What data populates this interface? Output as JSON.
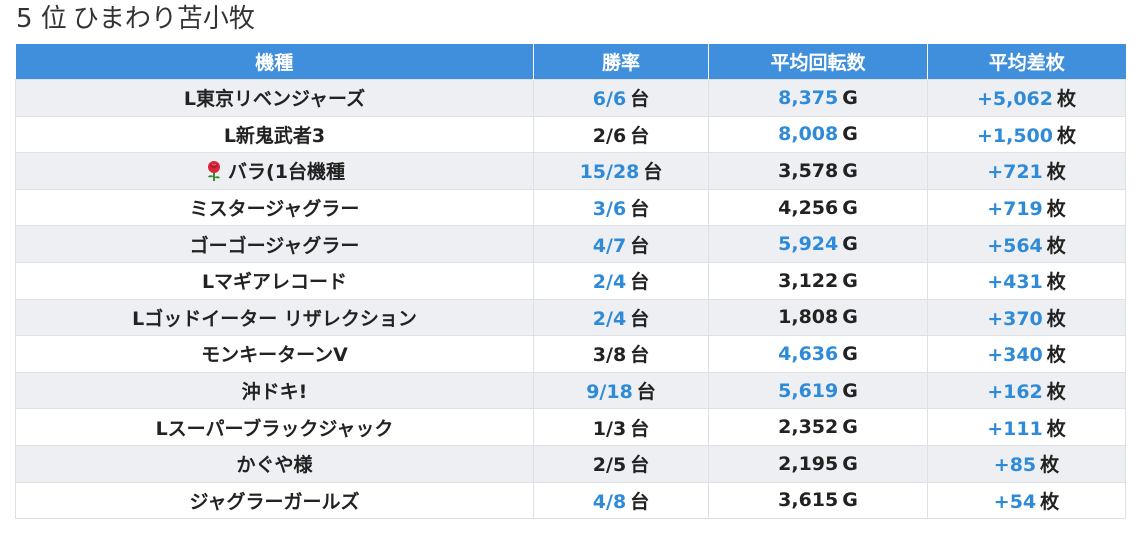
{
  "page": {
    "title_rank": "5 位",
    "title_store": "ひまわり苫小牧"
  },
  "colors": {
    "header_bg": "#3f8fdc",
    "highlight_text": "#2f8bd8",
    "stripe_bg": "#edeff2"
  },
  "table": {
    "headers": [
      "機種",
      "勝率",
      "平均回転数",
      "平均差枚"
    ],
    "rows": [
      {
        "machine": "L東京リベンジャーズ",
        "icon": "",
        "win": "6/6",
        "win_unit": "台",
        "win_hl": true,
        "spins": "8,375",
        "spins_unit": "G",
        "spins_hl": true,
        "diff": "+5,062",
        "diff_unit": "枚",
        "diff_hl": true
      },
      {
        "machine": "L新鬼武者3",
        "icon": "",
        "win": "2/6",
        "win_unit": "台",
        "win_hl": false,
        "spins": "8,008",
        "spins_unit": "G",
        "spins_hl": true,
        "diff": "+1,500",
        "diff_unit": "枚",
        "diff_hl": true
      },
      {
        "machine": "バラ(1台機種",
        "icon": "rose-icon",
        "win": "15/28",
        "win_unit": "台",
        "win_hl": true,
        "spins": "3,578",
        "spins_unit": "G",
        "spins_hl": false,
        "diff": "+721",
        "diff_unit": "枚",
        "diff_hl": true
      },
      {
        "machine": "ミスタージャグラー",
        "icon": "",
        "win": "3/6",
        "win_unit": "台",
        "win_hl": true,
        "spins": "4,256",
        "spins_unit": "G",
        "spins_hl": false,
        "diff": "+719",
        "diff_unit": "枚",
        "diff_hl": true
      },
      {
        "machine": "ゴーゴージャグラー",
        "icon": "",
        "win": "4/7",
        "win_unit": "台",
        "win_hl": true,
        "spins": "5,924",
        "spins_unit": "G",
        "spins_hl": true,
        "diff": "+564",
        "diff_unit": "枚",
        "diff_hl": true
      },
      {
        "machine": "Lマギアレコード",
        "icon": "",
        "win": "2/4",
        "win_unit": "台",
        "win_hl": true,
        "spins": "3,122",
        "spins_unit": "G",
        "spins_hl": false,
        "diff": "+431",
        "diff_unit": "枚",
        "diff_hl": true
      },
      {
        "machine": "Lゴッドイーター リザレクション",
        "icon": "",
        "win": "2/4",
        "win_unit": "台",
        "win_hl": true,
        "spins": "1,808",
        "spins_unit": "G",
        "spins_hl": false,
        "diff": "+370",
        "diff_unit": "枚",
        "diff_hl": true
      },
      {
        "machine": "モンキーターンV",
        "icon": "",
        "win": "3/8",
        "win_unit": "台",
        "win_hl": false,
        "spins": "4,636",
        "spins_unit": "G",
        "spins_hl": true,
        "diff": "+340",
        "diff_unit": "枚",
        "diff_hl": true
      },
      {
        "machine": "沖ドキ!",
        "icon": "",
        "win": "9/18",
        "win_unit": "台",
        "win_hl": true,
        "spins": "5,619",
        "spins_unit": "G",
        "spins_hl": true,
        "diff": "+162",
        "diff_unit": "枚",
        "diff_hl": true
      },
      {
        "machine": "Lスーパーブラックジャック",
        "icon": "",
        "win": "1/3",
        "win_unit": "台",
        "win_hl": false,
        "spins": "2,352",
        "spins_unit": "G",
        "spins_hl": false,
        "diff": "+111",
        "diff_unit": "枚",
        "diff_hl": true
      },
      {
        "machine": "かぐや様",
        "icon": "",
        "win": "2/5",
        "win_unit": "台",
        "win_hl": false,
        "spins": "2,195",
        "spins_unit": "G",
        "spins_hl": false,
        "diff": "+85",
        "diff_unit": "枚",
        "diff_hl": true
      },
      {
        "machine": "ジャグラーガールズ",
        "icon": "",
        "win": "4/8",
        "win_unit": "台",
        "win_hl": true,
        "spins": "3,615",
        "spins_unit": "G",
        "spins_hl": false,
        "diff": "+54",
        "diff_unit": "枚",
        "diff_hl": true
      }
    ]
  }
}
